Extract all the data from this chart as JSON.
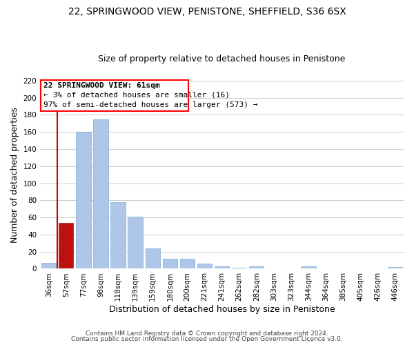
{
  "title": "22, SPRINGWOOD VIEW, PENISTONE, SHEFFIELD, S36 6SX",
  "subtitle": "Size of property relative to detached houses in Penistone",
  "xlabel": "Distribution of detached houses by size in Penistone",
  "ylabel": "Number of detached properties",
  "categories": [
    "36sqm",
    "57sqm",
    "77sqm",
    "98sqm",
    "118sqm",
    "139sqm",
    "159sqm",
    "180sqm",
    "200sqm",
    "221sqm",
    "241sqm",
    "262sqm",
    "282sqm",
    "303sqm",
    "323sqm",
    "344sqm",
    "364sqm",
    "385sqm",
    "405sqm",
    "426sqm",
    "446sqm"
  ],
  "values": [
    7,
    54,
    160,
    175,
    78,
    61,
    24,
    12,
    12,
    6,
    3,
    1,
    3,
    0,
    0,
    3,
    0,
    0,
    0,
    0,
    2
  ],
  "bar_color": "#aec6e8",
  "highlight_bar_index": 1,
  "highlight_bar_color": "#bb1111",
  "property_line_color": "#cc0000",
  "ylim_max": 220,
  "yticks": [
    0,
    20,
    40,
    60,
    80,
    100,
    120,
    140,
    160,
    180,
    200,
    220
  ],
  "ann_line1": "22 SPRINGWOOD VIEW: 61sqm",
  "ann_line2": "← 3% of detached houses are smaller (16)",
  "ann_line3": "97% of semi-detached houses are larger (573) →",
  "footer_line1": "Contains HM Land Registry data © Crown copyright and database right 2024.",
  "footer_line2": "Contains public sector information licensed under the Open Government Licence v3.0.",
  "background_color": "#ffffff",
  "grid_color": "#cccccc",
  "title_fontsize": 10,
  "subtitle_fontsize": 9,
  "axis_label_fontsize": 9,
  "tick_fontsize": 7.5,
  "annotation_fontsize": 8,
  "footer_fontsize": 6.5
}
